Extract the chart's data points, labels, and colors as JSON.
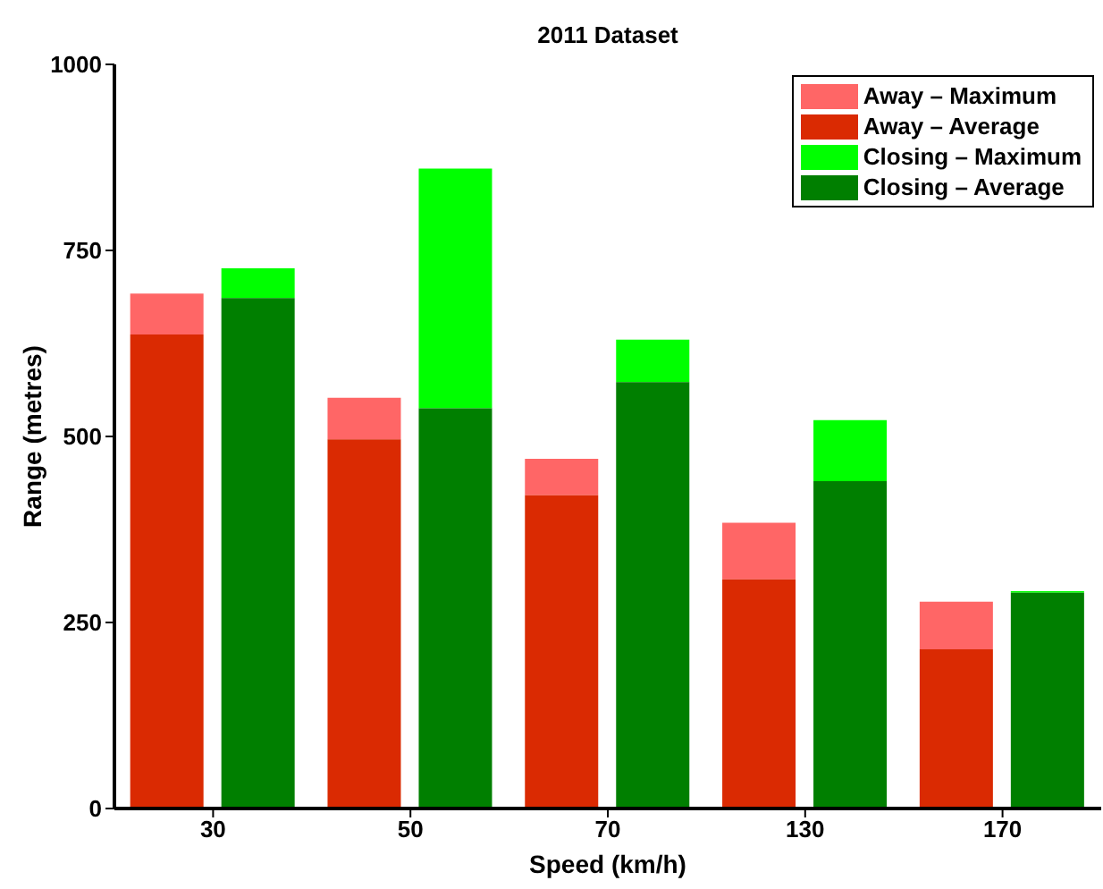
{
  "chart_data": {
    "type": "bar",
    "title": "2011 Dataset",
    "xlabel": "Speed (km/h)",
    "ylabel": "Range (metres)",
    "categories": [
      "30",
      "50",
      "70",
      "130",
      "170"
    ],
    "series": [
      {
        "name": "Away – Maximum",
        "color": "#ff6666",
        "values": [
          55,
          56,
          49,
          76,
          64
        ],
        "base": [
          637,
          496,
          421,
          308,
          214
        ]
      },
      {
        "name": "Away – Average",
        "color": "#da2a02",
        "values": [
          637,
          496,
          421,
          308,
          214
        ]
      },
      {
        "name": "Closing – Maximum",
        "color": "#00ff00",
        "values": [
          40,
          322,
          57,
          82,
          2
        ],
        "base": [
          686,
          538,
          573,
          440,
          290
        ]
      },
      {
        "name": "Closing – Average",
        "color": "#007f00",
        "values": [
          686,
          538,
          573,
          440,
          290
        ]
      }
    ],
    "ylim": [
      0,
      1000
    ],
    "yticks": [
      0,
      250,
      500,
      750,
      1000
    ],
    "grid": false,
    "legend": "top right"
  }
}
